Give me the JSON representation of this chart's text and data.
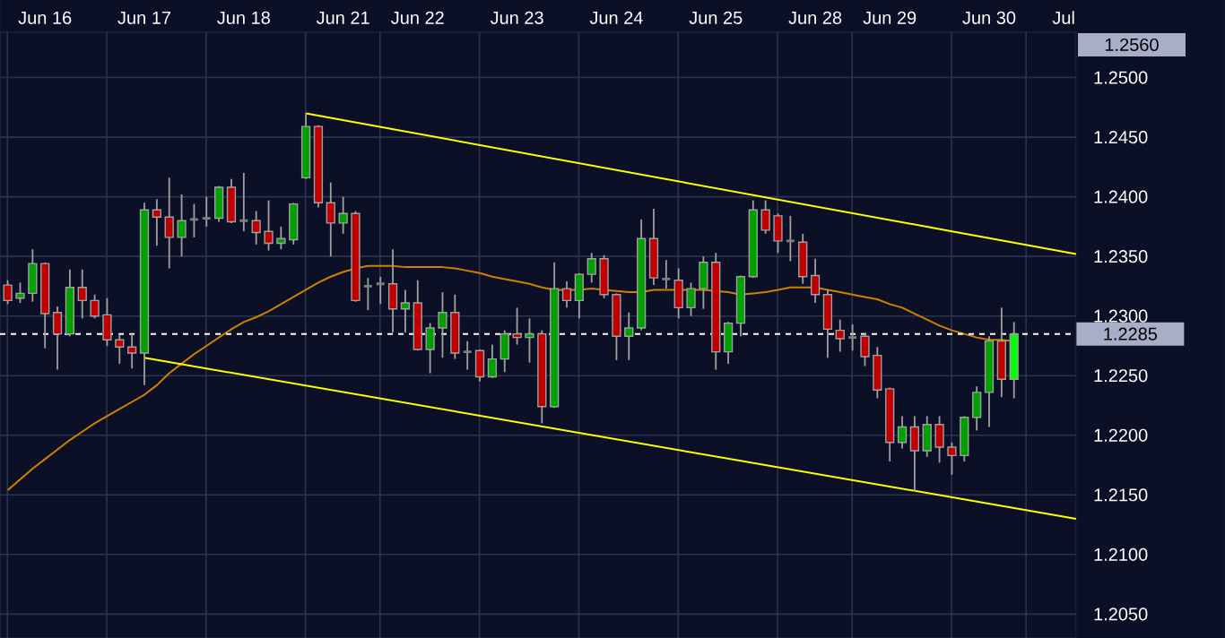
{
  "chart_data": {
    "type": "candlestick",
    "categories": [
      null,
      null,
      null,
      "Jun 16",
      null,
      null,
      null,
      null,
      null,
      null,
      null,
      "Jun 17",
      null,
      null,
      null,
      null,
      null,
      null,
      null,
      "Jun 18",
      null,
      null,
      null,
      null,
      null,
      null,
      null,
      "Jun 21",
      null,
      null,
      null,
      null,
      null,
      "Jun 22",
      null,
      null,
      null,
      null,
      null,
      null,
      null,
      "Jun 23",
      null,
      null,
      null,
      null,
      null,
      null,
      null,
      "Jun 24",
      null,
      null,
      null,
      null,
      null,
      null,
      null,
      "Jun 25",
      null,
      null,
      null,
      null,
      null,
      null,
      null,
      "Jun 28",
      null,
      null,
      null,
      null,
      null,
      "Jun 29",
      null,
      null,
      null,
      null,
      null,
      null,
      null,
      "Jun 30",
      null,
      null,
      null,
      null,
      null,
      "Jul",
      null
    ],
    "ohlc": [
      [
        1.2326,
        1.233,
        1.231,
        1.2313
      ],
      [
        1.2315,
        1.2328,
        1.2311,
        1.2319
      ],
      [
        1.2319,
        1.2356,
        1.2312,
        1.2344
      ],
      [
        1.2344,
        1.2345,
        1.2273,
        1.2302
      ],
      [
        1.2303,
        1.2308,
        1.2255,
        1.2285
      ],
      [
        1.2285,
        1.2339,
        1.2283,
        1.2324
      ],
      [
        1.2324,
        1.2339,
        1.2298,
        1.2313
      ],
      [
        1.2313,
        1.2318,
        1.2298,
        1.23
      ],
      [
        1.2301,
        1.2315,
        1.2275,
        1.228
      ],
      [
        1.228,
        1.2285,
        1.226,
        1.2274
      ],
      [
        1.2274,
        1.2285,
        1.2256,
        1.2269
      ],
      [
        1.2269,
        1.2395,
        1.2242,
        1.2389
      ],
      [
        1.2389,
        1.2398,
        1.2359,
        1.2383
      ],
      [
        1.2383,
        1.2416,
        1.234,
        1.2366
      ],
      [
        1.2366,
        1.2402,
        1.235,
        1.238
      ],
      [
        1.2381,
        1.2394,
        1.2366,
        1.2381
      ],
      [
        1.2382,
        1.24,
        1.2375,
        1.2382
      ],
      [
        1.2382,
        1.2409,
        1.2379,
        1.2408
      ],
      [
        1.2408,
        1.2415,
        1.2378,
        1.2379
      ],
      [
        1.238,
        1.242,
        1.2371,
        1.238
      ],
      [
        1.238,
        1.2388,
        1.236,
        1.237
      ],
      [
        1.2371,
        1.2397,
        1.2355,
        1.2361
      ],
      [
        1.2361,
        1.2375,
        1.2356,
        1.2365
      ],
      [
        1.2364,
        1.2395,
        1.236,
        1.2394
      ],
      [
        1.2416,
        1.247,
        1.2415,
        1.2459
      ],
      [
        1.2459,
        1.246,
        1.2391,
        1.2395
      ],
      [
        1.2395,
        1.2412,
        1.235,
        1.2378
      ],
      [
        1.2378,
        1.24,
        1.2369,
        1.2386
      ],
      [
        1.2386,
        1.2388,
        1.2312,
        1.2313
      ],
      [
        1.2325,
        1.2332,
        1.2305,
        1.2325
      ],
      [
        1.2327,
        1.2333,
        1.231,
        1.2327
      ],
      [
        1.2327,
        1.2356,
        1.2286,
        1.2306
      ],
      [
        1.2306,
        1.2322,
        1.2286,
        1.2311
      ],
      [
        1.2311,
        1.233,
        1.2271,
        1.2272
      ],
      [
        1.2272,
        1.2294,
        1.2252,
        1.229
      ],
      [
        1.229,
        1.232,
        1.2265,
        1.2303
      ],
      [
        1.2303,
        1.2318,
        1.2264,
        1.2269
      ],
      [
        1.227,
        1.2279,
        1.2255,
        1.227
      ],
      [
        1.2271,
        1.2272,
        1.2245,
        1.2249
      ],
      [
        1.2249,
        1.2276,
        1.2248,
        1.2264
      ],
      [
        1.2264,
        1.2288,
        1.2253,
        1.2285
      ],
      [
        1.2285,
        1.2307,
        1.2276,
        1.2282
      ],
      [
        1.2282,
        1.2298,
        1.2261,
        1.2285
      ],
      [
        1.2285,
        1.2288,
        1.221,
        1.2224
      ],
      [
        1.2224,
        1.2345,
        1.2223,
        1.2323
      ],
      [
        1.2323,
        1.2329,
        1.2307,
        1.2313
      ],
      [
        1.2313,
        1.2336,
        1.2298,
        1.2335
      ],
      [
        1.2335,
        1.2353,
        1.2328,
        1.2348
      ],
      [
        1.2348,
        1.2351,
        1.2315,
        1.2318
      ],
      [
        1.2318,
        1.2319,
        1.2263,
        1.2283
      ],
      [
        1.2283,
        1.2303,
        1.2263,
        1.229
      ],
      [
        1.229,
        1.2381,
        1.2288,
        1.2365
      ],
      [
        1.2365,
        1.239,
        1.2326,
        1.2332
      ],
      [
        1.2331,
        1.2347,
        1.2323,
        1.2331
      ],
      [
        1.233,
        1.234,
        1.2298,
        1.2307
      ],
      [
        1.2307,
        1.2328,
        1.23,
        1.2323
      ],
      [
        1.2323,
        1.235,
        1.2306,
        1.2345
      ],
      [
        1.2345,
        1.2353,
        1.2255,
        1.227
      ],
      [
        1.227,
        1.2295,
        1.226,
        1.2294
      ],
      [
        1.2294,
        1.2334,
        1.2283,
        1.2333
      ],
      [
        1.2333,
        1.2397,
        1.2332,
        1.2389
      ],
      [
        1.2389,
        1.2397,
        1.2369,
        1.2372
      ],
      [
        1.2384,
        1.2386,
        1.2353,
        1.2363
      ],
      [
        1.2363,
        1.2384,
        1.2346,
        1.2363
      ],
      [
        1.2362,
        1.2369,
        1.2327,
        1.2333
      ],
      [
        1.2334,
        1.2348,
        1.2311,
        1.2318
      ],
      [
        1.2318,
        1.2322,
        1.2265,
        1.2289
      ],
      [
        1.2288,
        1.2297,
        1.227,
        1.2281
      ],
      [
        1.2282,
        1.2293,
        1.2271,
        1.2282
      ],
      [
        1.2283,
        1.2286,
        1.2258,
        1.2266
      ],
      [
        1.2267,
        1.2274,
        1.2231,
        1.2238
      ],
      [
        1.2239,
        1.224,
        1.2178,
        1.2194
      ],
      [
        1.2194,
        1.2216,
        1.2189,
        1.2207
      ],
      [
        1.2207,
        1.2216,
        1.2153,
        1.2187
      ],
      [
        1.2187,
        1.2216,
        1.2182,
        1.2209
      ],
      [
        1.2209,
        1.2216,
        1.2177,
        1.219
      ],
      [
        1.219,
        1.2194,
        1.2167,
        1.2183
      ],
      [
        1.2183,
        1.2216,
        1.2178,
        1.2215
      ],
      [
        1.2215,
        1.2241,
        1.2204,
        1.2236
      ],
      [
        1.2236,
        1.2283,
        1.2207,
        1.2279
      ],
      [
        1.2279,
        1.2307,
        1.2232,
        1.2247
      ],
      [
        1.2247,
        1.2295,
        1.2231,
        1.2285
      ],
      null,
      null,
      null,
      null,
      null
    ],
    "colors": [
      "#c00000",
      "#00a000",
      "#00a000",
      "#c00000",
      "#c00000",
      "#00a000",
      "#c00000",
      "#c00000",
      "#c00000",
      "#c00000",
      "#c00000",
      "#00a000",
      "#c00000",
      "#c00000",
      "#00a000",
      "#808080",
      "#808080",
      "#00a000",
      "#c00000",
      "#808080",
      "#c00000",
      "#c00000",
      "#00a000",
      "#00a000",
      "#00a000",
      "#c00000",
      "#c00000",
      "#00a000",
      "#c00000",
      "#808080",
      "#808080",
      "#c00000",
      "#00a000",
      "#c00000",
      "#00a000",
      "#00a000",
      "#c00000",
      "#808080",
      "#c00000",
      "#00a000",
      "#00a000",
      "#c00000",
      "#00a000",
      "#c00000",
      "#00a000",
      "#c00000",
      "#00a000",
      "#00a000",
      "#c00000",
      "#c00000",
      "#00a000",
      "#00a000",
      "#c00000",
      "#808080",
      "#c00000",
      "#00a000",
      "#00a000",
      "#c00000",
      "#00a000",
      "#00a000",
      "#00a000",
      "#c00000",
      "#c00000",
      "#808080",
      "#c00000",
      "#c00000",
      "#c00000",
      "#c00000",
      "#808080",
      "#c00000",
      "#c00000",
      "#c00000",
      "#00a000",
      "#c00000",
      "#00a000",
      "#c00000",
      "#c00000",
      "#00a000",
      "#00a000",
      "#00a000",
      "#c00000",
      "#00ff00",
      null,
      null,
      null,
      null,
      null
    ],
    "series": [
      {
        "type": "line",
        "color": "#d08000",
        "values": [
          1.2154,
          1.2163,
          1.2172,
          1.218,
          1.2188,
          1.2196,
          1.2203,
          1.221,
          1.2216,
          1.2222,
          1.2228,
          1.2234,
          1.2242,
          1.2252,
          1.226,
          1.2268,
          1.2275,
          1.2282,
          1.2289,
          1.2295,
          1.2299,
          1.2304,
          1.231,
          1.2316,
          1.2322,
          1.2328,
          1.2333,
          1.2337,
          1.234,
          1.2342,
          1.2342,
          1.2342,
          1.2341,
          1.2341,
          1.2341,
          1.2341,
          1.234,
          1.2338,
          1.2336,
          1.2333,
          1.2331,
          1.2329,
          1.2327,
          1.2324,
          1.2322,
          1.2322,
          1.2322,
          1.2323,
          1.2322,
          1.2321,
          1.232,
          1.232,
          1.2322,
          1.2322,
          1.2322,
          1.2322,
          1.2322,
          1.2321,
          1.232,
          1.2318,
          1.2319,
          1.232,
          1.2322,
          1.2324,
          1.2324,
          1.2324,
          1.2322,
          1.232,
          1.2318,
          1.2316,
          1.2314,
          1.231,
          1.2307,
          1.2302,
          1.2297,
          1.2292,
          1.2288,
          1.2285,
          1.2282,
          1.228,
          1.228,
          1.2279,
          null,
          null,
          null,
          null,
          null
        ]
      },
      {
        "type": "line",
        "color": "#ffff00",
        "values": [
          null,
          null,
          null,
          null,
          null,
          null,
          null,
          null,
          null,
          null,
          null,
          null,
          null,
          null,
          null,
          null,
          null,
          null,
          null,
          null,
          null,
          null,
          null,
          null,
          1.247,
          null,
          null,
          null,
          null,
          null,
          null,
          null,
          null,
          null,
          null,
          null,
          null,
          null,
          null,
          null,
          null,
          null,
          null,
          null,
          null,
          null,
          null,
          null,
          null,
          null,
          null,
          null,
          null,
          null,
          null,
          null,
          null,
          null,
          null,
          null,
          null,
          null,
          null,
          null,
          null,
          null,
          null,
          null,
          null,
          null,
          null,
          null,
          null,
          null,
          null,
          null,
          null,
          null,
          null,
          null,
          null,
          null,
          null,
          null,
          null,
          null,
          1.2352
        ]
      },
      {
        "type": "line",
        "color": "#ffff00",
        "values": [
          null,
          null,
          null,
          null,
          null,
          null,
          null,
          null,
          null,
          null,
          null,
          1.2265,
          null,
          null,
          null,
          null,
          null,
          null,
          null,
          null,
          null,
          null,
          null,
          null,
          null,
          null,
          null,
          null,
          null,
          null,
          null,
          null,
          null,
          null,
          null,
          null,
          null,
          null,
          null,
          null,
          null,
          null,
          null,
          null,
          null,
          null,
          null,
          null,
          null,
          null,
          null,
          null,
          null,
          null,
          null,
          null,
          null,
          null,
          null,
          null,
          null,
          null,
          null,
          null,
          null,
          null,
          null,
          null,
          null,
          null,
          null,
          null,
          null,
          null,
          null,
          null,
          null,
          null,
          null,
          null,
          null,
          null,
          null,
          null,
          null,
          null,
          1.213
        ]
      }
    ],
    "ylim": [
      1.203,
      1.2538
    ],
    "yticks": [
      {
        "value": 1.205,
        "label": "1.2050"
      },
      {
        "value": 1.21,
        "label": "1.2100"
      },
      {
        "value": 1.215,
        "label": "1.2150"
      },
      {
        "value": 1.22,
        "label": "1.2200"
      },
      {
        "value": 1.225,
        "label": "1.2250"
      },
      {
        "value": 1.23,
        "label": "1.2300"
      },
      {
        "value": 1.235,
        "label": "1.2350"
      },
      {
        "value": 1.24,
        "label": "1.2400"
      },
      {
        "value": 1.245,
        "label": "1.2450"
      },
      {
        "value": 1.25,
        "label": "1.2500"
      }
    ],
    "grid": true,
    "ref_lines": [
      {
        "axis": "y",
        "value": 1.2285,
        "label": "1.2285",
        "color": "#ffffff",
        "line_style": "dashed"
      }
    ],
    "annotations": [
      "1.2560"
    ]
  }
}
